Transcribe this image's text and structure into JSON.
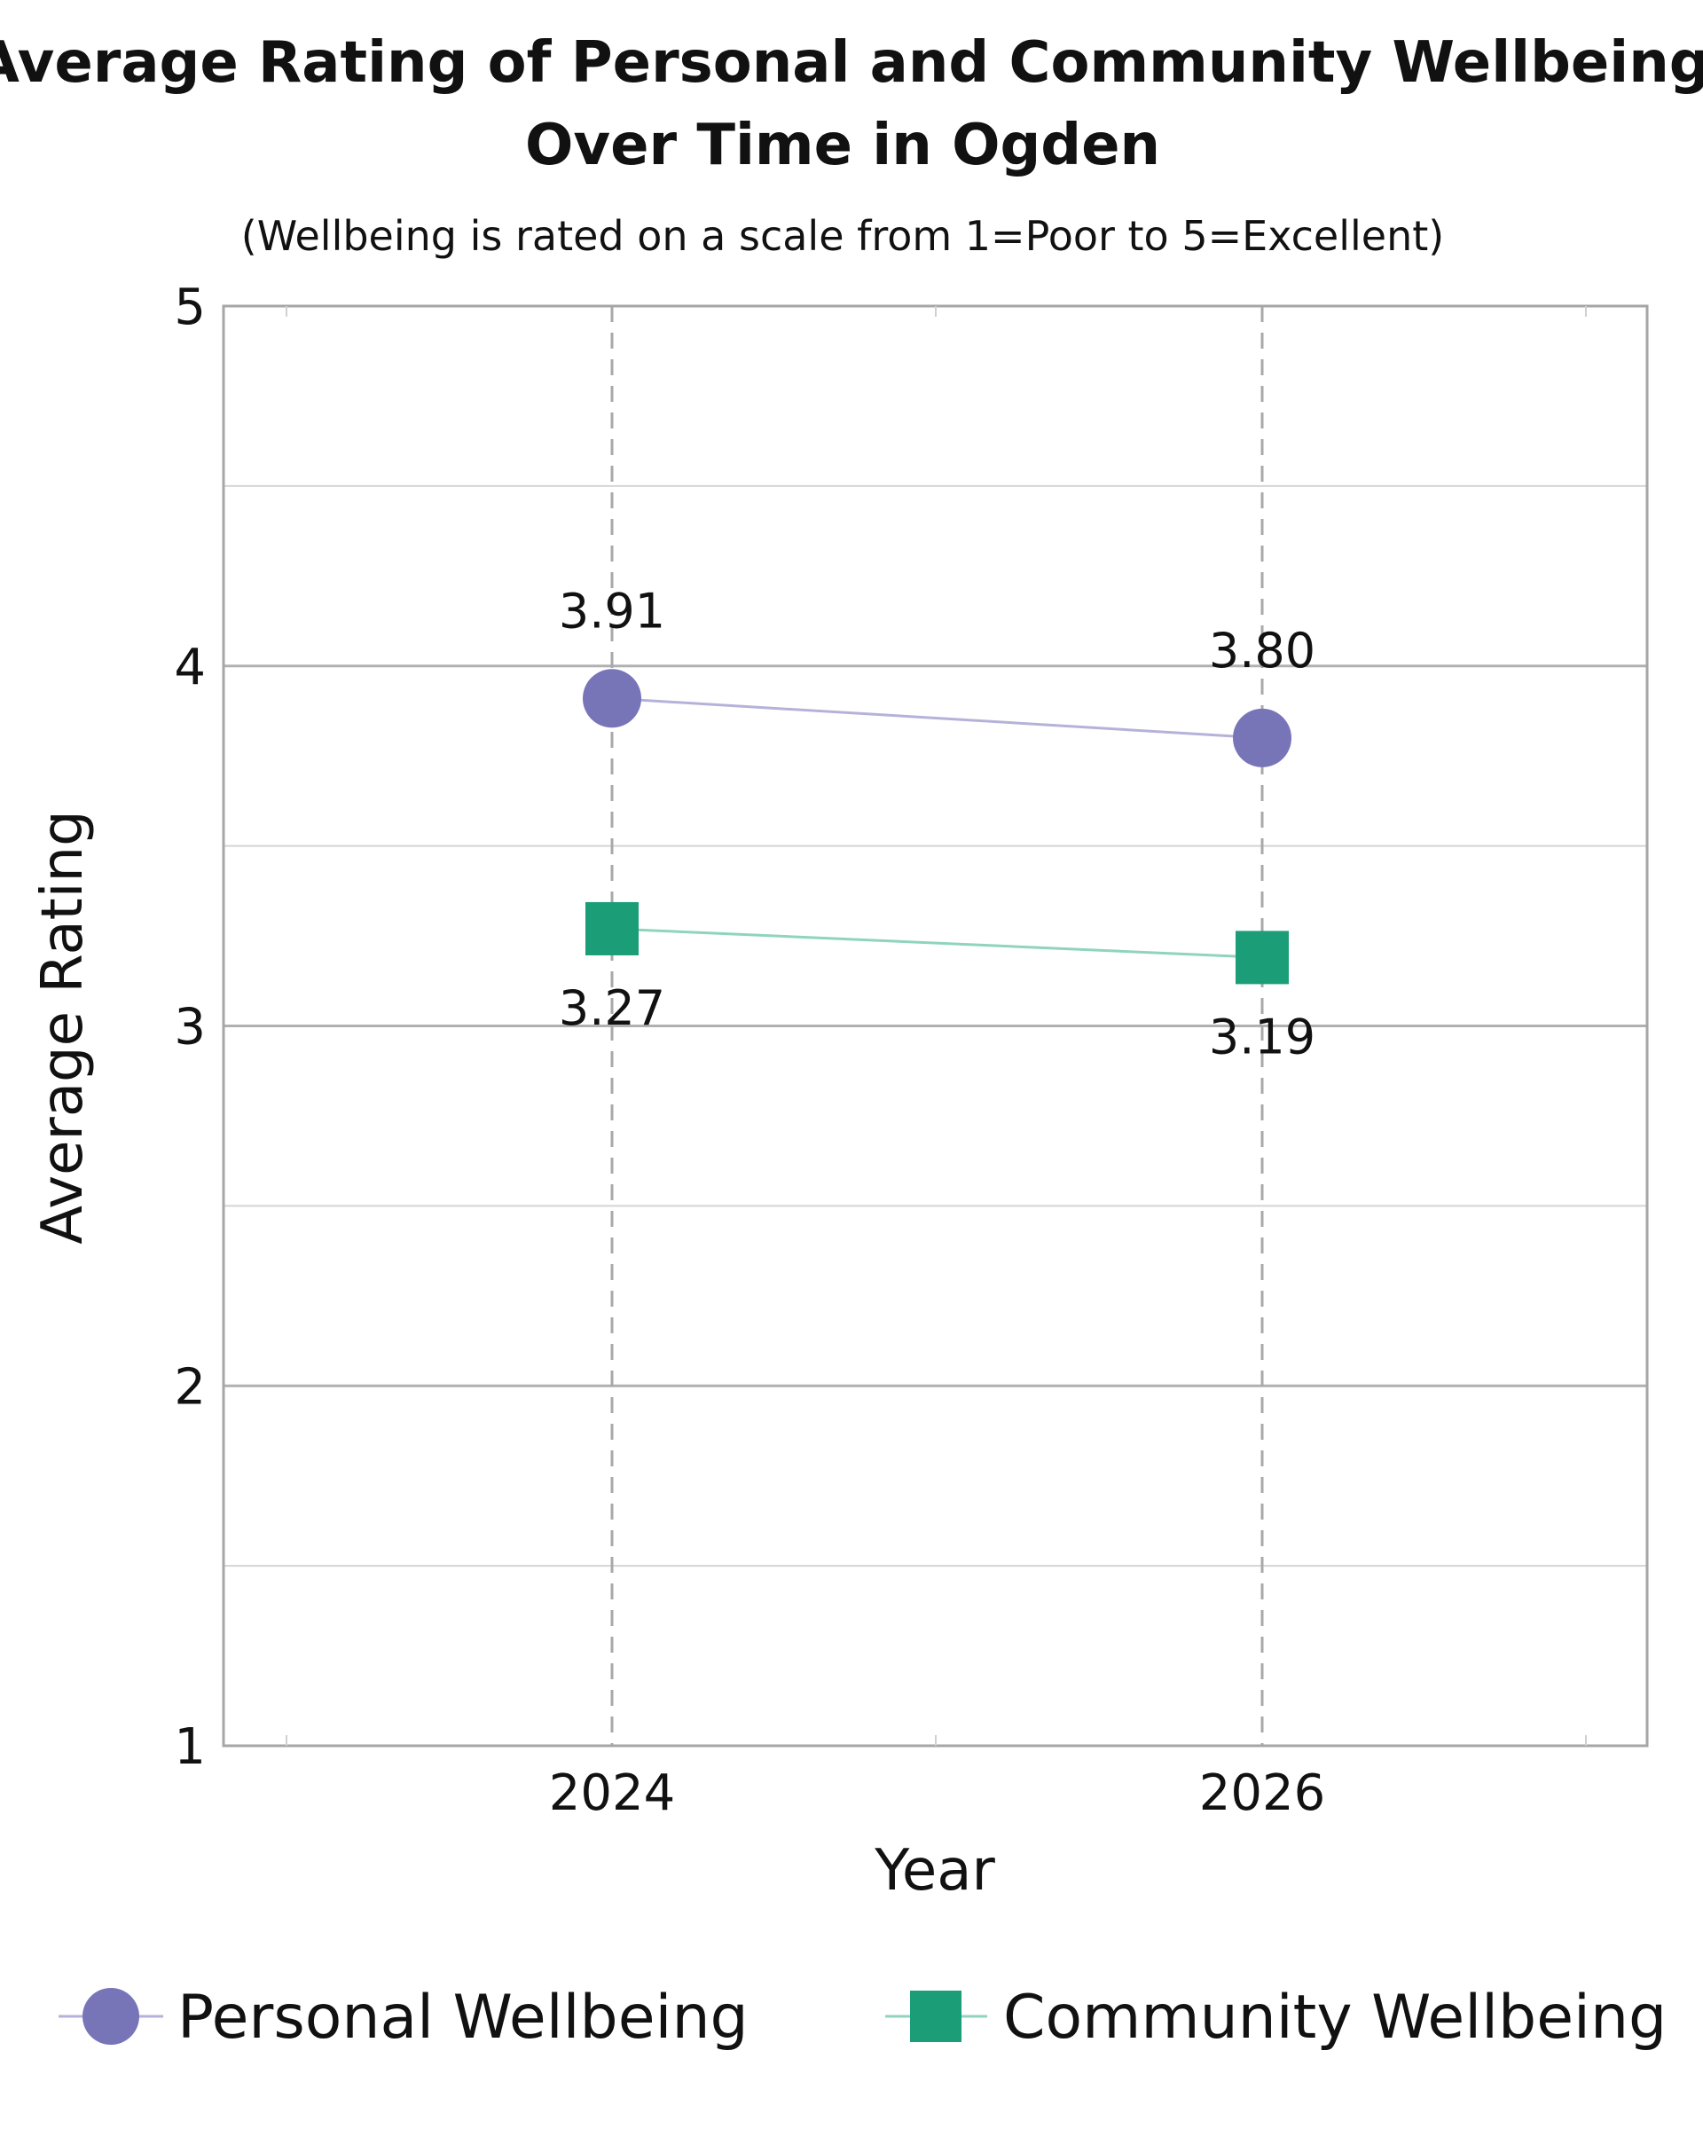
{
  "chart_data": {
    "type": "line",
    "title": [
      "Average Rating of Personal and Community Wellbeing",
      "Over Time in Ogden"
    ],
    "subtitle": "(Wellbeing is rated on a scale from 1=Poor to 5=Excellent)",
    "xlabel": "Year",
    "ylabel": "Average Rating",
    "x": [
      "2024",
      "2026"
    ],
    "x_ticks": [
      "2024",
      "2026"
    ],
    "y_ticks": [
      "1",
      "2",
      "3",
      "4",
      "5"
    ],
    "ylim": [
      1,
      5
    ],
    "grid": true,
    "legend_position": "bottom",
    "series": [
      {
        "name": "Personal Wellbeing",
        "values": [
          3.91,
          3.8
        ],
        "labels": [
          "3.91",
          "3.80"
        ],
        "label_position": "above",
        "marker": "circle",
        "color": "#7774b8",
        "line_color": "#b5b2d9"
      },
      {
        "name": "Community Wellbeing",
        "values": [
          3.27,
          3.19
        ],
        "labels": [
          "3.27",
          "3.19"
        ],
        "label_position": "below",
        "marker": "square",
        "color": "#1b9e77",
        "line_color": "#8fd4bd"
      }
    ]
  }
}
